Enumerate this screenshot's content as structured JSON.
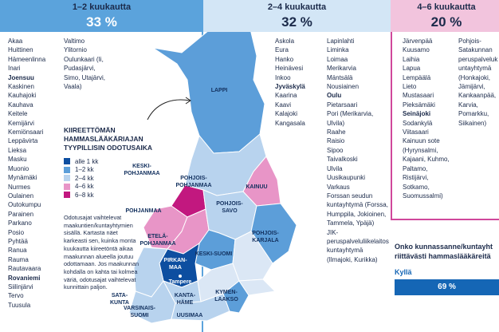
{
  "columns": [
    {
      "header": "1–2 kuukautta",
      "share": "33 %",
      "lists": [
        [
          "Akaa",
          "Huittinen",
          "Hämeenlinna",
          "Inari",
          {
            "text": "Joensuu",
            "bold": true
          },
          "Kaskinen",
          "Kauhajoki",
          "Kauhava",
          "Keitele",
          "Kemijärvi",
          "Kemiönsaari",
          "Leppävirta",
          "Lieksa",
          "Masku",
          "Muonio",
          "Mynämäki",
          "Nurmes",
          "Oulainen",
          "Outokumpu",
          "Parainen",
          "Parkano",
          "Posio",
          "Pyhtää",
          "Ranua",
          "Rauma",
          "Rautavaara",
          {
            "text": "Rovaniemi",
            "bold": true
          },
          "Siilinjärvi",
          "Tervo",
          "Tuusula"
        ],
        [
          "Valtimo",
          "Ylitornio",
          "Oulunkaari (Ii, Pudasjärvi, Simo, Utajärvi, Vaala)"
        ]
      ]
    },
    {
      "header": "2–4 kuukautta",
      "share": "32 %",
      "lists": [
        [
          "Askola",
          "Eura",
          "Hanko",
          "Heinävesi",
          "Inkoo",
          {
            "text": "Jyväskylä",
            "bold": true
          },
          "Kaarina",
          "Kaavi",
          "Kalajoki",
          "Kangasala"
        ],
        [
          "Lapinlahti",
          "Liminka",
          "Loimaa",
          "Merikarvia",
          "Mäntsälä",
          "Nousiainen",
          {
            "text": "Oulu",
            "bold": true
          },
          "Pietarsaari",
          "Pori (Merikarvia, Ulvila)",
          "Raahe",
          "Raisio",
          "Sipoo",
          "Taivalkoski",
          "Ulvila",
          "Uusikaupunki",
          "Varkaus",
          "Forssan seudun kuntayhtymä (Forssa, Humppila, Jokioinen, Tammela, Ypäjä)",
          "JIK-peruspalveluliikelaitoskuntayhtymä (Ilmajoki, Kurikka)"
        ]
      ]
    },
    {
      "header": "4–6 kuukautta",
      "share": "20 %",
      "lists": [
        [
          "Järvenpää",
          "Kuusamo",
          "Laihia",
          "Lapua",
          "Lempäälä",
          "Lieto",
          "Mustasaari",
          "Pieksämäki",
          {
            "text": "Seinäjoki",
            "bold": true
          },
          "Sodankylä",
          "Viitasaari",
          "Kainuun sote (Hyrynsalmi, Kajaani, Kuhmo, Paltamo, Ristijärvi, Sotkamo, Suomussalmi)"
        ],
        [
          "Pohjois-Satakunnan peruspalvelukuntayhtymä (Honkajoki, Jämijärvi, Kankaanpää, Karvia, Pomarkku, Siikainen)"
        ]
      ]
    }
  ],
  "legend": {
    "title": "KIIREETTÖMÄN HAMMASLÄÄKÄRIAJAN TYYPILLISIN ODOTUSAIKA",
    "items": [
      {
        "label": "alle 1 kk",
        "color": "#0d4ea0"
      },
      {
        "label": "1–2 kk",
        "color": "#5c9ed9"
      },
      {
        "label": "2–4 kk",
        "color": "#b8d3ee"
      },
      {
        "label": "4–6 kk",
        "color": "#e895c7"
      },
      {
        "label": "6–8 kk",
        "color": "#c2187f"
      }
    ]
  },
  "note": "Odotusajat vaihtelevat maakuntien/kuntayhtymien sisällä. Kartasta näet karkeasti sen, kuinka monta kuukautta kiireetöntä aikaa maakunnan alueella joutuu odottamaan. Jos maakunnan kohdalla on kahta tai kolmea väriä, odotusajat vaihtelevat kunnittain paljon.",
  "map": {
    "labels": [
      {
        "lines": [
          "LAPPI"
        ]
      },
      {
        "lines": [
          "KESKI-",
          "POHJANMAA"
        ]
      },
      {
        "lines": [
          "POHJOIS-",
          "POHJANMAA"
        ]
      },
      {
        "lines": [
          "KAINUU"
        ]
      },
      {
        "lines": [
          "POHJANMAA"
        ]
      },
      {
        "lines": [
          "ETELÄ-",
          "POHJANMAA"
        ]
      },
      {
        "lines": [
          "POHJOIS-",
          "SAVO"
        ]
      },
      {
        "lines": [
          "POHJOIS-",
          "KARJALA"
        ]
      },
      {
        "lines": [
          "KESKI-SUOMI"
        ]
      },
      {
        "lines": [
          "PIRKAN-",
          "MAA"
        ]
      },
      {
        "lines": [
          "Tampere"
        ]
      },
      {
        "lines": [
          "SATA-",
          "KUNTA"
        ]
      },
      {
        "lines": [
          "KANTA-",
          "HÄME"
        ]
      },
      {
        "lines": [
          "KYMEN-",
          "LAAKSO"
        ]
      },
      {
        "lines": [
          "VARSINAIS-",
          "SUOMI"
        ]
      },
      {
        "lines": [
          "UUSIMAA"
        ]
      }
    ]
  },
  "survey": {
    "question_lines": [
      "Onko kunnassanne/kuntayht",
      "riittävästi hammaslääkäreitä"
    ],
    "answers": [
      {
        "label": "Kyllä",
        "value": 69,
        "value_label": "69 %"
      }
    ]
  }
}
